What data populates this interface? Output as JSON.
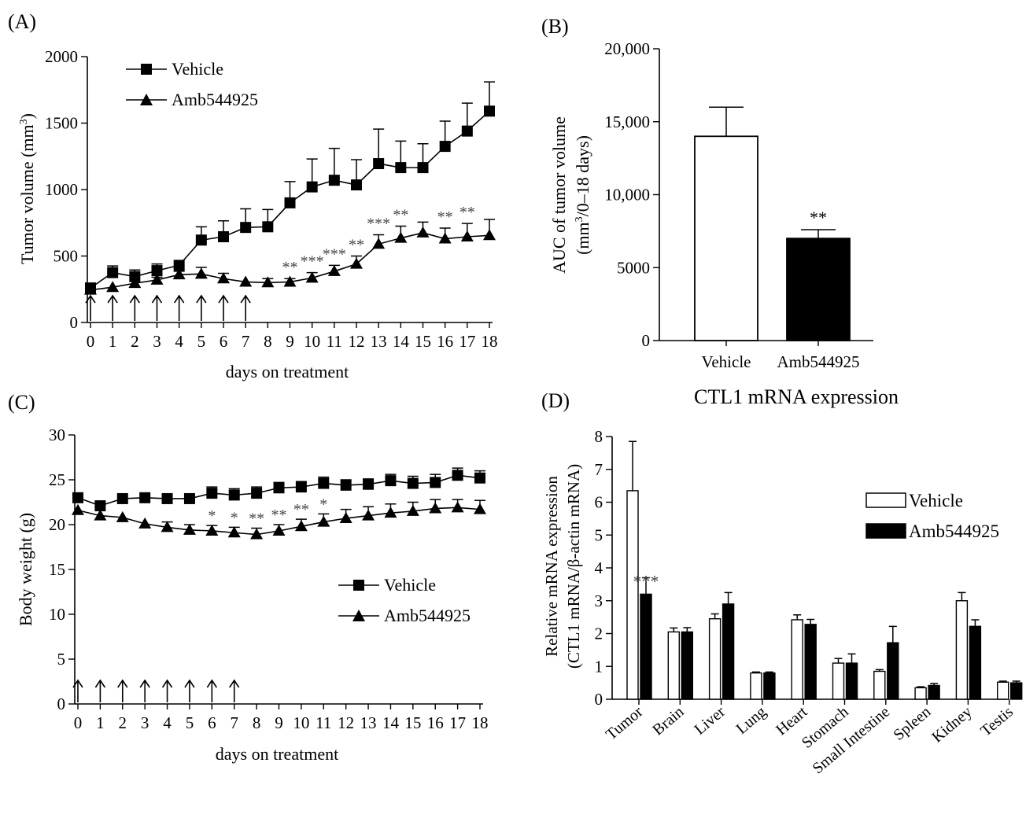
{
  "chart_data": [
    {
      "panel": "A",
      "panel_label": "(A)",
      "type": "line",
      "xlabel": "days on treatment",
      "ylabel": "Tumor volume (mm³)",
      "ylabel_main": "Tumor volume (mm",
      "ylabel_sup": "3",
      "ylabel_end": ")",
      "x": [
        0,
        1,
        2,
        3,
        4,
        5,
        6,
        7,
        8,
        9,
        10,
        11,
        12,
        13,
        14,
        15,
        16,
        17,
        18
      ],
      "xlim": [
        0,
        18
      ],
      "ylim": [
        0,
        2000
      ],
      "yticks": [
        0,
        500,
        1000,
        1500,
        2000
      ],
      "legend_position": "top-left",
      "treatment_days": [
        0,
        1,
        2,
        3,
        4,
        5,
        6,
        7
      ],
      "series": [
        {
          "name": "Vehicle",
          "marker": "square",
          "values": [
            260,
            375,
            345,
            390,
            430,
            620,
            645,
            715,
            720,
            900,
            1020,
            1070,
            1035,
            1195,
            1165,
            1165,
            1325,
            1440,
            1590
          ],
          "err": [
            0,
            50,
            50,
            50,
            0,
            100,
            120,
            140,
            130,
            160,
            210,
            240,
            190,
            260,
            200,
            180,
            190,
            210,
            220
          ]
        },
        {
          "name": "Amb544925",
          "marker": "triangle",
          "values": [
            245,
            265,
            295,
            320,
            360,
            365,
            330,
            305,
            300,
            305,
            335,
            385,
            440,
            590,
            635,
            675,
            630,
            645,
            655
          ],
          "err": [
            0,
            0,
            0,
            20,
            25,
            50,
            40,
            0,
            30,
            25,
            40,
            45,
            60,
            70,
            90,
            80,
            80,
            100,
            120
          ]
        }
      ],
      "significance": [
        {
          "x": 9,
          "label": "**"
        },
        {
          "x": 10,
          "label": "***"
        },
        {
          "x": 11,
          "label": "***"
        },
        {
          "x": 12,
          "label": "**"
        },
        {
          "x": 13,
          "label": "***"
        },
        {
          "x": 14,
          "label": "**"
        },
        {
          "x": 16,
          "label": "**"
        },
        {
          "x": 17,
          "label": "**"
        }
      ]
    },
    {
      "panel": "B",
      "panel_label": "(B)",
      "type": "bar",
      "categories": [
        "Vehicle",
        "Amb544925"
      ],
      "values": [
        14000,
        7000
      ],
      "err": [
        2000,
        600
      ],
      "colors": [
        "#ffffff",
        "#000000"
      ],
      "ylabel_line1": "AUC of tumor volume",
      "ylabel_line2_main": "(mm",
      "ylabel_line2_sup": "3",
      "ylabel_line2_end": "/0–18 days)",
      "ylim": [
        0,
        20000
      ],
      "yticks": [
        0,
        5000,
        10000,
        15000,
        20000
      ],
      "ytick_labels": [
        "0",
        "5000",
        "10,000",
        "15,000",
        "20,000"
      ],
      "significance": [
        {
          "category": "Amb544925",
          "label": "**"
        }
      ]
    },
    {
      "panel": "C",
      "panel_label": "(C)",
      "type": "line",
      "xlabel": "days on treatment",
      "ylabel": "Body weight (g)",
      "x": [
        0,
        1,
        2,
        3,
        4,
        5,
        6,
        7,
        8,
        9,
        10,
        11,
        12,
        13,
        14,
        15,
        16,
        17,
        18
      ],
      "xlim": [
        0,
        18
      ],
      "ylim": [
        0,
        30
      ],
      "yticks": [
        0,
        5,
        10,
        15,
        20,
        25,
        30
      ],
      "legend_position": "center-right",
      "treatment_days": [
        0,
        1,
        2,
        3,
        4,
        5,
        6,
        7
      ],
      "series": [
        {
          "name": "Vehicle",
          "marker": "square",
          "values": [
            23.0,
            22.1,
            22.9,
            23.0,
            22.9,
            22.9,
            23.5,
            23.3,
            23.5,
            24.1,
            24.2,
            24.6,
            24.4,
            24.5,
            24.9,
            24.6,
            24.7,
            25.5,
            25.2
          ],
          "err": [
            0,
            0,
            0,
            0,
            0,
            0,
            0.7,
            0.7,
            0.7,
            0.6,
            0.6,
            0.7,
            0.6,
            0.6,
            0.7,
            0.8,
            0.9,
            0.8,
            0.8
          ]
        },
        {
          "name": "Amb544925",
          "marker": "triangle",
          "values": [
            21.6,
            21.0,
            20.8,
            20.1,
            19.7,
            19.4,
            19.3,
            19.1,
            18.9,
            19.3,
            19.8,
            20.3,
            20.7,
            21.0,
            21.3,
            21.5,
            21.8,
            21.9,
            21.7
          ],
          "err": [
            0,
            0,
            0,
            0,
            0.6,
            0.6,
            0.6,
            0.6,
            0.7,
            0.7,
            0.8,
            0.9,
            1.0,
            1.0,
            1.0,
            1.0,
            1.0,
            0.9,
            1.0
          ]
        }
      ],
      "significance": [
        {
          "x": 6,
          "label": "*"
        },
        {
          "x": 7,
          "label": "*"
        },
        {
          "x": 8,
          "label": "**"
        },
        {
          "x": 9,
          "label": "**"
        },
        {
          "x": 10,
          "label": "**"
        },
        {
          "x": 11,
          "label": "*"
        }
      ]
    },
    {
      "panel": "D",
      "panel_label": "(D)",
      "type": "bar",
      "title": "CTL1 mRNA expression",
      "ylabel_line1": "Relative mRNA expression",
      "ylabel_line2": "(CTL1 mRNA/β-actin mRNA)",
      "categories": [
        "Tumor",
        "Brain",
        "Liver",
        "Lung",
        "Heart",
        "Stomach",
        "Small Intestine",
        "Spleen",
        "Kidney",
        "Testis"
      ],
      "ylim": [
        0,
        8
      ],
      "yticks": [
        0,
        1,
        2,
        3,
        4,
        5,
        6,
        7,
        8
      ],
      "legend_position": "top-right",
      "series": [
        {
          "name": "Vehicle",
          "color": "#ffffff",
          "values": [
            6.35,
            2.05,
            2.45,
            0.8,
            2.42,
            1.1,
            0.85,
            0.35,
            3.0,
            0.52
          ],
          "err": [
            1.5,
            0.12,
            0.15,
            0.03,
            0.15,
            0.14,
            0.05,
            0.03,
            0.25,
            0.03
          ]
        },
        {
          "name": "Amb544925",
          "color": "#000000",
          "values": [
            3.2,
            2.05,
            2.9,
            0.8,
            2.28,
            1.1,
            1.72,
            0.42,
            2.22,
            0.5
          ],
          "err": [
            0.5,
            0.13,
            0.35,
            0.03,
            0.15,
            0.28,
            0.5,
            0.06,
            0.2,
            0.05
          ]
        }
      ],
      "significance": [
        {
          "category": "Tumor",
          "label": "***"
        }
      ]
    }
  ]
}
